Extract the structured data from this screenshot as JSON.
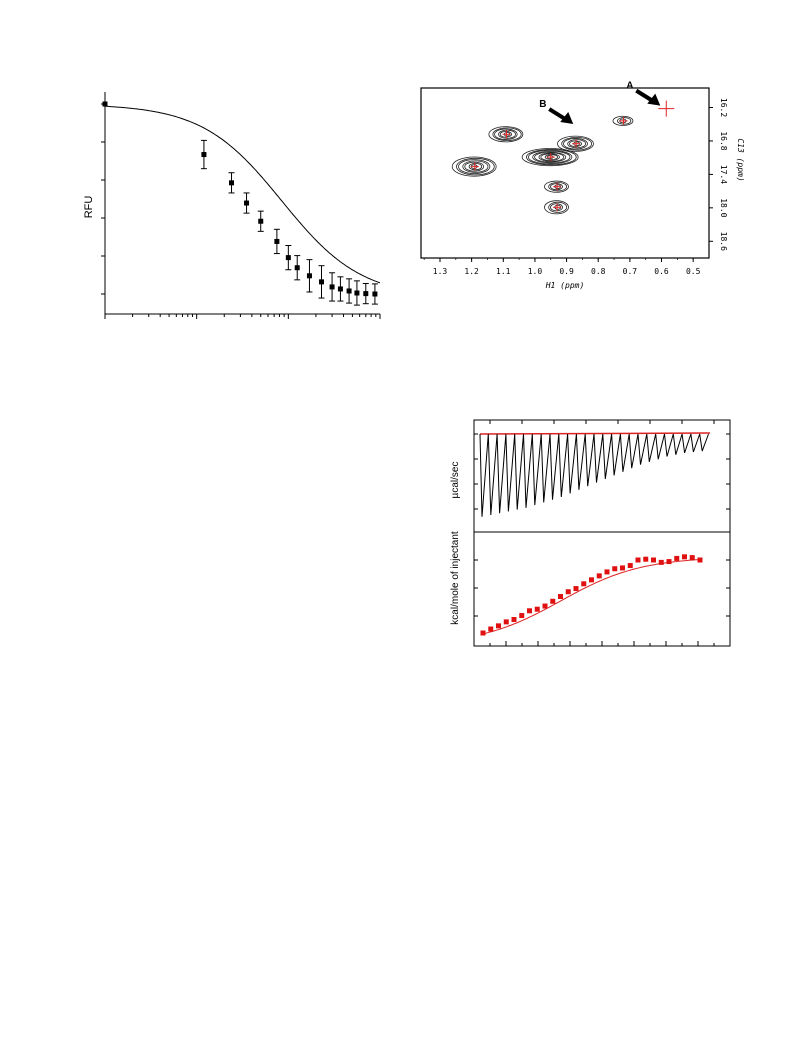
{
  "chart_data": [
    {
      "type": "scatter",
      "ylabel": "RFU",
      "xscale": "log",
      "grid": false,
      "series": [
        {
          "x": [
            1,
            12,
            24,
            35,
            50,
            75,
            100,
            125,
            170,
            230,
            300,
            370,
            460,
            560,
            700,
            880
          ],
          "y": [
            1.0,
            0.75,
            0.61,
            0.51,
            0.42,
            0.32,
            0.24,
            0.19,
            0.15,
            0.12,
            0.095,
            0.085,
            0.075,
            0.065,
            0.062,
            0.06
          ],
          "err": [
            0,
            0.07,
            0.05,
            0.05,
            0.05,
            0.06,
            0.06,
            0.06,
            0.08,
            0.08,
            0.07,
            0.06,
            0.06,
            0.06,
            0.05,
            0.05
          ]
        }
      ],
      "fit": {
        "top": 1.0,
        "bottom": 0.04,
        "ec50": 85,
        "hill": 1.0
      }
    },
    {
      "type": "scatter",
      "xlabel": "H1 (ppm)",
      "ylabel": "C13 (ppm)",
      "x_ticks": [
        "1.3",
        "1.2",
        "1.1",
        "1.0",
        "0.9",
        "0.8",
        "0.7",
        "0.6",
        "0.5"
      ],
      "y_ticks": [
        "16.2",
        "16.8",
        "17.4",
        "18.0",
        "18.6"
      ],
      "xlim": [
        1.36,
        0.45
      ],
      "ylim": [
        15.85,
        18.9
      ],
      "annotations": [
        {
          "label": "A",
          "x": 0.585,
          "y": 16.22
        },
        {
          "label": "B",
          "x": 0.86,
          "y": 16.55
        }
      ],
      "peaks": [
        {
          "x": 1.19,
          "y": 17.26
        },
        {
          "x": 1.09,
          "y": 16.68
        },
        {
          "x": 0.95,
          "y": 17.09
        },
        {
          "x": 0.87,
          "y": 16.85
        },
        {
          "x": 0.93,
          "y": 17.62
        },
        {
          "x": 0.93,
          "y": 17.99
        },
        {
          "x": 0.72,
          "y": 16.44
        },
        {
          "x": 0.585,
          "y": 16.22
        }
      ]
    },
    {
      "type": "line",
      "ylabel": "µcal/sec",
      "injections": 26,
      "baseline": 0,
      "peak_depths": [
        -0.92,
        -0.9,
        -0.88,
        -0.86,
        -0.84,
        -0.82,
        -0.79,
        -0.76,
        -0.73,
        -0.7,
        -0.66,
        -0.62,
        -0.58,
        -0.54,
        -0.5,
        -0.46,
        -0.42,
        -0.38,
        -0.34,
        -0.31,
        -0.28,
        -0.25,
        -0.23,
        -0.21,
        -0.2,
        -0.19
      ]
    },
    {
      "type": "scatter",
      "ylabel": "kcal/mole of injectant",
      "series": [
        {
          "values": [
            -1.12,
            -1.07,
            -1.03,
            -0.98,
            -0.95,
            -0.9,
            -0.84,
            -0.82,
            -0.78,
            -0.72,
            -0.66,
            -0.6,
            -0.56,
            -0.5,
            -0.45,
            -0.4,
            -0.35,
            -0.31,
            -0.3,
            -0.27,
            -0.2,
            -0.19,
            -0.2,
            -0.23,
            -0.22,
            -0.18,
            -0.16,
            -0.17,
            -0.2
          ]
        }
      ]
    }
  ]
}
